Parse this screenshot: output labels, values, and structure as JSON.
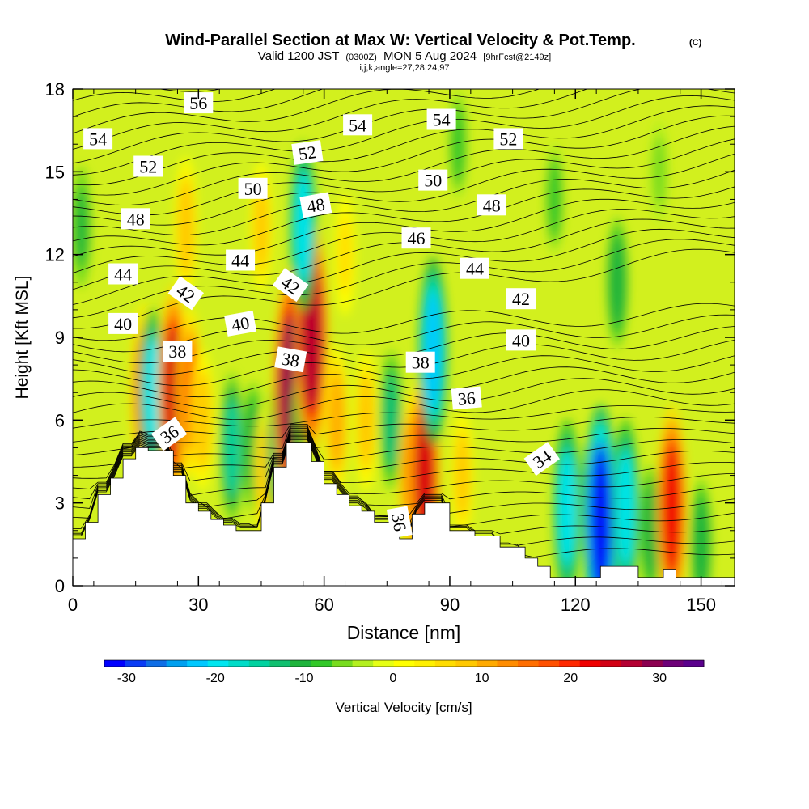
{
  "header": {
    "title": "Wind-Parallel Section at Max W: Vertical Velocity & Pot.Temp.",
    "copyright": "(C)",
    "valid_prefix": "Valid 1200 JST",
    "valid_zulu": "(0300Z)",
    "valid_date": "MON 5 Aug 2024",
    "forecast": "[9hrFcst@2149z]",
    "params": "i,j,k,angle=27,28,24,97"
  },
  "chart_data": {
    "type": "heatmap",
    "xlabel": "Distance [nm]",
    "ylabel": "Height [Kft MSL]",
    "xlim": [
      0,
      158
    ],
    "ylim": [
      0,
      18
    ],
    "x_ticks": [
      "0",
      "30",
      "60",
      "90",
      "120",
      "150"
    ],
    "y_ticks": [
      "0",
      "3",
      "6",
      "9",
      "12",
      "15",
      "18"
    ],
    "colorbar": {
      "label": "Vertical Velocity [cm/s]",
      "ticks": [
        "-30",
        "-20",
        "-10",
        "0",
        "10",
        "20",
        "30"
      ],
      "min": -32.5,
      "max": 35,
      "step": 2.5,
      "colors": [
        "#0000ff",
        "#0a3cf5",
        "#0f6ee6",
        "#00a0f0",
        "#00c8ff",
        "#00e6f0",
        "#00dcc8",
        "#00d2a0",
        "#10c070",
        "#1eb43c",
        "#32c828",
        "#78dc1e",
        "#b4f01e",
        "#e6ff14",
        "#ffff00",
        "#fff000",
        "#ffdc00",
        "#ffc800",
        "#ffaa00",
        "#ff8c00",
        "#ff6e00",
        "#ff5000",
        "#ff2800",
        "#f00000",
        "#d20014",
        "#b40032",
        "#8c0050",
        "#6e0078",
        "#5a008c"
      ]
    },
    "terrain": [
      [
        0,
        1.7
      ],
      [
        3,
        1.7
      ],
      [
        3,
        2.3
      ],
      [
        6,
        2.3
      ],
      [
        6,
        3.3
      ],
      [
        9,
        3.3
      ],
      [
        9,
        3.9
      ],
      [
        12,
        3.9
      ],
      [
        12,
        4.6
      ],
      [
        15,
        4.6
      ],
      [
        15,
        5.0
      ],
      [
        18,
        5.0
      ],
      [
        18,
        4.9
      ],
      [
        24,
        4.9
      ],
      [
        24,
        4.0
      ],
      [
        27,
        4.0
      ],
      [
        27,
        3.0
      ],
      [
        30,
        3.0
      ],
      [
        30,
        2.7
      ],
      [
        33,
        2.7
      ],
      [
        33,
        2.4
      ],
      [
        36,
        2.4
      ],
      [
        36,
        2.2
      ],
      [
        39,
        2.2
      ],
      [
        39,
        2.0
      ],
      [
        42,
        2.0
      ],
      [
        42,
        2.0
      ],
      [
        45,
        2.0
      ],
      [
        45,
        3.0
      ],
      [
        48,
        3.0
      ],
      [
        48,
        4.3
      ],
      [
        51,
        4.3
      ],
      [
        51,
        5.2
      ],
      [
        57,
        5.2
      ],
      [
        57,
        4.5
      ],
      [
        60,
        4.5
      ],
      [
        60,
        3.7
      ],
      [
        63,
        3.7
      ],
      [
        63,
        3.3
      ],
      [
        66,
        3.3
      ],
      [
        66,
        2.9
      ],
      [
        69,
        2.9
      ],
      [
        69,
        2.7
      ],
      [
        72,
        2.7
      ],
      [
        72,
        2.3
      ],
      [
        78,
        2.3
      ],
      [
        78,
        1.7
      ],
      [
        81,
        1.7
      ],
      [
        81,
        2.6
      ],
      [
        84,
        2.6
      ],
      [
        84,
        3.0
      ],
      [
        90,
        3.0
      ],
      [
        90,
        2.0
      ],
      [
        96,
        2.0
      ],
      [
        96,
        1.8
      ],
      [
        102,
        1.8
      ],
      [
        102,
        1.4
      ],
      [
        108,
        1.4
      ],
      [
        108,
        1.0
      ],
      [
        111,
        1.0
      ],
      [
        111,
        0.7
      ],
      [
        114,
        0.7
      ],
      [
        114,
        0.3
      ],
      [
        126,
        0.3
      ],
      [
        126,
        0.7
      ],
      [
        135,
        0.7
      ],
      [
        135,
        0.3
      ],
      [
        141,
        0.3
      ],
      [
        141,
        0.6
      ],
      [
        144,
        0.6
      ],
      [
        144,
        0.3
      ],
      [
        158,
        0.3
      ]
    ],
    "isentrope_labels": [
      {
        "text": "56",
        "x": 30,
        "y": 17.5,
        "angle": 0
      },
      {
        "text": "54",
        "x": 6,
        "y": 16.2,
        "angle": 0
      },
      {
        "text": "54",
        "x": 68,
        "y": 16.7,
        "angle": 0
      },
      {
        "text": "54",
        "x": 88,
        "y": 16.9,
        "angle": 0
      },
      {
        "text": "52",
        "x": 18,
        "y": 15.2,
        "angle": 0
      },
      {
        "text": "52",
        "x": 56,
        "y": 15.7,
        "angle": -8
      },
      {
        "text": "52",
        "x": 104,
        "y": 16.2,
        "angle": 0
      },
      {
        "text": "50",
        "x": 43,
        "y": 14.4,
        "angle": 0
      },
      {
        "text": "50",
        "x": 86,
        "y": 14.7,
        "angle": 0
      },
      {
        "text": "48",
        "x": 15,
        "y": 13.3,
        "angle": 0
      },
      {
        "text": "48",
        "x": 58,
        "y": 13.8,
        "angle": -10
      },
      {
        "text": "48",
        "x": 100,
        "y": 13.8,
        "angle": 0
      },
      {
        "text": "46",
        "x": 82,
        "y": 12.6,
        "angle": 0
      },
      {
        "text": "44",
        "x": 12,
        "y": 11.3,
        "angle": 0
      },
      {
        "text": "44",
        "x": 40,
        "y": 11.8,
        "angle": 0
      },
      {
        "text": "44",
        "x": 96,
        "y": 11.5,
        "angle": 0
      },
      {
        "text": "42",
        "x": 27,
        "y": 10.6,
        "angle": 35
      },
      {
        "text": "42",
        "x": 52,
        "y": 10.9,
        "angle": 35
      },
      {
        "text": "42",
        "x": 107,
        "y": 10.4,
        "angle": 0
      },
      {
        "text": "40",
        "x": 12,
        "y": 9.5,
        "angle": 0
      },
      {
        "text": "40",
        "x": 40,
        "y": 9.5,
        "angle": -10
      },
      {
        "text": "40",
        "x": 107,
        "y": 8.9,
        "angle": 0
      },
      {
        "text": "38",
        "x": 25,
        "y": 8.5,
        "angle": 0
      },
      {
        "text": "38",
        "x": 52,
        "y": 8.2,
        "angle": 10
      },
      {
        "text": "38",
        "x": 83,
        "y": 8.1,
        "angle": 0
      },
      {
        "text": "36",
        "x": 23,
        "y": 5.5,
        "angle": -35
      },
      {
        "text": "36",
        "x": 94,
        "y": 6.8,
        "angle": -5
      },
      {
        "text": "36",
        "x": 78,
        "y": 2.3,
        "angle": 80
      },
      {
        "text": "34",
        "x": 112,
        "y": 4.6,
        "angle": -35
      }
    ],
    "updraft_cores": [
      {
        "x": 2,
        "y": 13,
        "w": -8
      },
      {
        "x": 17,
        "y": 7,
        "w": 20
      },
      {
        "x": 19,
        "y": 7,
        "w": -18
      },
      {
        "x": 24,
        "y": 7,
        "w": 28
      },
      {
        "x": 28,
        "y": 7,
        "w": 18
      },
      {
        "x": 31,
        "y": 6,
        "w": 12
      },
      {
        "x": 38,
        "y": 5,
        "w": -14
      },
      {
        "x": 43,
        "y": 5,
        "w": -10
      },
      {
        "x": 46,
        "y": 4,
        "w": 12
      },
      {
        "x": 49,
        "y": 5,
        "w": -12
      },
      {
        "x": 52,
        "y": 7,
        "w": 34
      },
      {
        "x": 55,
        "y": 6,
        "w": -8
      },
      {
        "x": 57,
        "y": 9,
        "w": 32
      },
      {
        "x": 55,
        "y": 13,
        "w": -18
      },
      {
        "x": 63,
        "y": 6,
        "w": 14
      },
      {
        "x": 70,
        "y": 6,
        "w": 12
      },
      {
        "x": 76,
        "y": 6,
        "w": -12
      },
      {
        "x": 81,
        "y": 4,
        "w": 18
      },
      {
        "x": 84,
        "y": 4,
        "w": 28
      },
      {
        "x": 86,
        "y": 8.5,
        "w": -22
      },
      {
        "x": 93,
        "y": 4,
        "w": 10
      },
      {
        "x": 118,
        "y": 2.8,
        "w": -20
      },
      {
        "x": 123,
        "y": 3,
        "w": -8
      },
      {
        "x": 126,
        "y": 2.3,
        "w": -32
      },
      {
        "x": 132,
        "y": 2.8,
        "w": -20
      },
      {
        "x": 138,
        "y": 2,
        "w": -10
      },
      {
        "x": 143,
        "y": 2.8,
        "w": 26
      },
      {
        "x": 150,
        "y": 1.5,
        "w": -10
      },
      {
        "x": 130,
        "y": 11,
        "w": -10
      },
      {
        "x": 115,
        "y": 14,
        "w": -6
      },
      {
        "x": 27,
        "y": 13,
        "w": 12
      },
      {
        "x": 45,
        "y": 13,
        "w": 10
      },
      {
        "x": 65,
        "y": 12,
        "w": 8
      },
      {
        "x": 92,
        "y": 16,
        "w": -6
      },
      {
        "x": 140,
        "y": 15,
        "w": -4
      }
    ]
  }
}
